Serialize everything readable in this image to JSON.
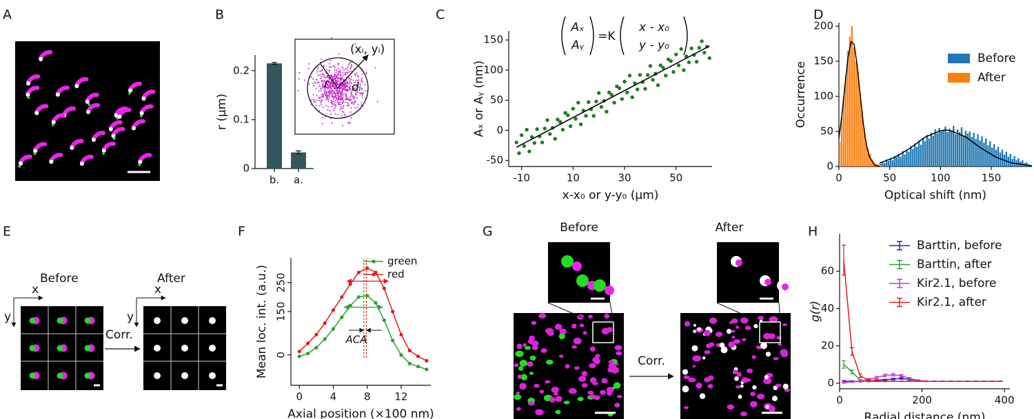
{
  "chart_data": [
    {
      "panel": "A",
      "type": "image"
    },
    {
      "panel": "B",
      "type": "bar",
      "categories": [
        "b.",
        "a."
      ],
      "values": [
        0.215,
        0.033
      ],
      "errors": [
        0.002,
        0.003
      ],
      "color": "#34565f",
      "ylabel": "r (µm)",
      "ylim": [
        0,
        0.232
      ],
      "yticks": [
        0,
        0.1,
        0.2
      ],
      "inset_labels": [
        "(xᵢ, yᵢ)",
        "r",
        "dᵢ"
      ]
    },
    {
      "panel": "C",
      "type": "scatter",
      "color": "#1e7d1e",
      "x": [
        -12,
        -11,
        -10,
        -9,
        -8,
        -7,
        -6,
        -5,
        -4,
        -3,
        -2,
        -1,
        0,
        1,
        2,
        3,
        4,
        5,
        6,
        7,
        8,
        9,
        10,
        11,
        12,
        13,
        14,
        15,
        16,
        17,
        18,
        19,
        20,
        21,
        22,
        23,
        24,
        25,
        26,
        27,
        28,
        29,
        30,
        31,
        32,
        33,
        34,
        35,
        36,
        37,
        38,
        39,
        40,
        41,
        42,
        43,
        44,
        45,
        46,
        47,
        48,
        49,
        50,
        51,
        52,
        53,
        54,
        55,
        56,
        57,
        58,
        59,
        60,
        61,
        62,
        63
      ],
      "values": [
        -20,
        -38,
        -8,
        -26,
        1,
        -35,
        -11,
        -21,
        2,
        -10,
        -20,
        3,
        17,
        -6,
        4,
        -14,
        18,
        14,
        1,
        29,
        25,
        7,
        36,
        19,
        46,
        10,
        33,
        24,
        47,
        35,
        24,
        48,
        62,
        39,
        49,
        31,
        63,
        59,
        46,
        73,
        70,
        52,
        81,
        63,
        91,
        55,
        78,
        68,
        92,
        80,
        69,
        92,
        107,
        84,
        94,
        75,
        108,
        104,
        91,
        118,
        115,
        97,
        126,
        108,
        135,
        100,
        123,
        113,
        136,
        125,
        114,
        137,
        148,
        129,
        139,
        120
      ],
      "fit_x": [
        -12,
        63
      ],
      "fit_values": [
        -28,
        140
      ],
      "fit_color": "#000000",
      "equation": {
        "lhs": [
          "Aₓ",
          "Aᵧ"
        ],
        "op": "=K",
        "rhs": [
          "x - x₀",
          "y - y₀"
        ]
      },
      "xlabel": "x-x₀ or y-y₀ (µm)",
      "ylabel": "Aₓ or Aᵧ (nm)",
      "xlim": [
        -15,
        64
      ],
      "ylim": [
        -60,
        165
      ],
      "xticks": [
        -10,
        10,
        30,
        50
      ],
      "yticks": [
        -50,
        0,
        50,
        100,
        150
      ]
    },
    {
      "panel": "D",
      "type": "histogram",
      "xlabel": "Optical shift (nm)",
      "ylabel": "Occurrence",
      "xlim": [
        0,
        190
      ],
      "ylim": [
        0,
        205
      ],
      "xticks": [
        0,
        50,
        100,
        150
      ],
      "yticks": [
        0,
        50,
        100,
        150,
        200
      ],
      "legend": "upper right",
      "series": [
        {
          "name": "Before",
          "color": "#1f77b4",
          "bins": [
            40,
            42,
            44,
            46,
            48,
            50,
            52,
            54,
            56,
            58,
            60,
            62,
            64,
            66,
            68,
            70,
            72,
            74,
            76,
            78,
            80,
            82,
            84,
            86,
            88,
            90,
            92,
            94,
            96,
            98,
            100,
            102,
            104,
            106,
            108,
            110,
            112,
            114,
            116,
            118,
            120,
            122,
            124,
            126,
            128,
            130,
            132,
            134,
            136,
            138,
            140,
            142,
            144,
            146,
            148,
            150,
            152,
            154,
            156,
            158,
            160,
            162,
            164,
            166,
            168,
            170,
            172,
            174,
            176,
            178,
            180,
            182,
            184,
            186,
            188,
            190
          ],
          "values": [
            4,
            7,
            5,
            10,
            8,
            12,
            9,
            15,
            13,
            18,
            14,
            22,
            17,
            24,
            21,
            29,
            25,
            33,
            28,
            37,
            31,
            41,
            36,
            45,
            40,
            48,
            44,
            53,
            47,
            55,
            50,
            52,
            57,
            49,
            54,
            51,
            58,
            46,
            53,
            49,
            56,
            44,
            51,
            47,
            50,
            42,
            48,
            39,
            46,
            37,
            43,
            34,
            40,
            30,
            36,
            27,
            32,
            24,
            28,
            20,
            24,
            17,
            21,
            14,
            18,
            11,
            15,
            9,
            12,
            7,
            9,
            5,
            6,
            3,
            2
          ]
        },
        {
          "name": "After",
          "color": "#ff7f0e",
          "bins": [
            0,
            2,
            4,
            6,
            8,
            10,
            12,
            14,
            16,
            18,
            20,
            22,
            24,
            26,
            28,
            30,
            32,
            34,
            36,
            38,
            40,
            42,
            44
          ],
          "values": [
            35,
            70,
            100,
            130,
            165,
            185,
            200,
            170,
            150,
            135,
            105,
            80,
            55,
            35,
            25,
            18,
            10,
            6,
            4,
            3,
            2,
            1
          ]
        }
      ],
      "fits": [
        {
          "color": "#000000",
          "x": [
            0,
            3,
            6,
            9,
            12,
            15,
            18,
            21,
            24,
            27,
            30,
            35,
            40
          ],
          "values": [
            40,
            74,
            116,
            156,
            178,
            174,
            144,
            102,
            61,
            31,
            14,
            2,
            0
          ]
        },
        {
          "color": "#000000",
          "x": [
            40,
            55,
            70,
            85,
            100,
            105,
            110,
            125,
            140,
            155,
            170,
            185,
            190
          ],
          "values": [
            5,
            13,
            26,
            42,
            51,
            52,
            51,
            42,
            26,
            13,
            5,
            2,
            1
          ]
        }
      ]
    },
    {
      "panel": "E",
      "type": "image",
      "before": "Before",
      "after": "After",
      "before_axes": [
        "x",
        "y"
      ],
      "after_axes": [
        "x",
        "y"
      ],
      "corr": "Corr."
    },
    {
      "panel": "F",
      "type": "line",
      "xlabel": "Axial position (×100 nm)",
      "ylabel": "Mean loc. int. (a.u.)",
      "xlim": [
        -1,
        15.5
      ],
      "ylim": [
        -105,
        335
      ],
      "xticks": [
        0,
        4,
        8,
        12
      ],
      "yticks": [
        0,
        150,
        250
      ],
      "legend": "upper right",
      "x": [
        0,
        1,
        2,
        3,
        4,
        5,
        6,
        7,
        8,
        9,
        10,
        11,
        12,
        13,
        14,
        15
      ],
      "series": [
        {
          "name": "green",
          "color": "#2ca02c",
          "values": [
            -5,
            5,
            25,
            55,
            90,
            130,
            170,
            200,
            205,
            180,
            120,
            50,
            0,
            -30,
            -40,
            -50
          ]
        },
        {
          "name": "red",
          "color": "#e41a1c",
          "values": [
            12,
            40,
            70,
            110,
            155,
            200,
            245,
            285,
            300,
            285,
            230,
            150,
            70,
            15,
            -5,
            -20
          ]
        }
      ],
      "peak_lines": [
        {
          "x": 7.6,
          "color": "#2ca02c"
        },
        {
          "x": 7.9,
          "color": "#e41a1c"
        }
      ],
      "widths": [
        {
          "from": 5.6,
          "to": 10.5,
          "y": 255,
          "color": "#e41a1c"
        },
        {
          "from": 5.3,
          "to": 9.8,
          "y": 165,
          "color": "#2ca02c"
        }
      ],
      "annotation": "ACA"
    },
    {
      "panel": "G",
      "type": "image",
      "before": "Before",
      "after": "After",
      "corr": "Corr."
    },
    {
      "panel": "H",
      "type": "errorbar",
      "xlabel": "Radial distance (nm)",
      "ylabel": "g(r)",
      "xlim": [
        0,
        413
      ],
      "ylim": [
        -3,
        80
      ],
      "xticks": [
        0,
        200,
        400
      ],
      "yticks": [
        0,
        20,
        40,
        60
      ],
      "legend": "upper right",
      "x": [
        10,
        30,
        50,
        70,
        90,
        110,
        130,
        150,
        170,
        190,
        210,
        230,
        250,
        270,
        290,
        310,
        330,
        350,
        370,
        390
      ],
      "series": [
        {
          "name": "Barttin, before",
          "color": "#1f1fcc",
          "values": [
            1,
            1,
            1,
            1.2,
            1.5,
            1.8,
            2.2,
            2.5,
            2,
            1.3,
            1,
            1,
            1,
            1,
            1,
            1,
            1,
            1,
            1,
            1
          ],
          "errors": [
            0.4,
            0.3,
            0.3,
            0.3,
            0.3,
            0.3,
            0.4,
            0.4,
            0.3,
            0.2,
            0.1,
            0.1,
            0.1,
            0.1,
            0.1,
            0.1,
            0.1,
            0.1,
            0.1,
            0.1
          ]
        },
        {
          "name": "Barttin, after",
          "color": "#2ca02c",
          "values": [
            10,
            6,
            1.5,
            1,
            1,
            1,
            1,
            1,
            1,
            1,
            1,
            1,
            1,
            1,
            1,
            1,
            1,
            1,
            1,
            1
          ],
          "errors": [
            2,
            1,
            0.5,
            0.3,
            0.2,
            0.2,
            0.1,
            0.1,
            0.1,
            0.1,
            0.1,
            0.1,
            0.1,
            0.1,
            0.1,
            0.1,
            0.1,
            0.1,
            0.1,
            0.1
          ]
        },
        {
          "name": "Kir2.1, before",
          "color": "#cc33cc",
          "values": [
            0.3,
            0.7,
            1,
            2,
            3,
            4.2,
            4.5,
            4,
            2.5,
            1.5,
            1,
            1,
            1,
            1,
            1,
            1,
            1,
            1,
            1,
            1
          ],
          "errors": [
            0.3,
            0.3,
            0.4,
            0.5,
            0.6,
            0.7,
            0.7,
            0.6,
            0.5,
            0.3,
            0.2,
            0.1,
            0.1,
            0.1,
            0.1,
            0.1,
            0.1,
            0.1,
            0.1,
            0.1
          ]
        },
        {
          "name": "Kir2.1, after",
          "color": "#e41a1c",
          "values": [
            66,
            17,
            4,
            1.5,
            1.2,
            1,
            1,
            1,
            1,
            1,
            1,
            1,
            1,
            1,
            1,
            1,
            1,
            1,
            1,
            1
          ],
          "errors": [
            8,
            2,
            1,
            0.5,
            0.3,
            0.2,
            0.1,
            0.1,
            0.1,
            0.1,
            0.1,
            0.1,
            0.1,
            0.1,
            0.1,
            0.1,
            0.1,
            0.1,
            0.1,
            0.1
          ]
        }
      ]
    }
  ]
}
